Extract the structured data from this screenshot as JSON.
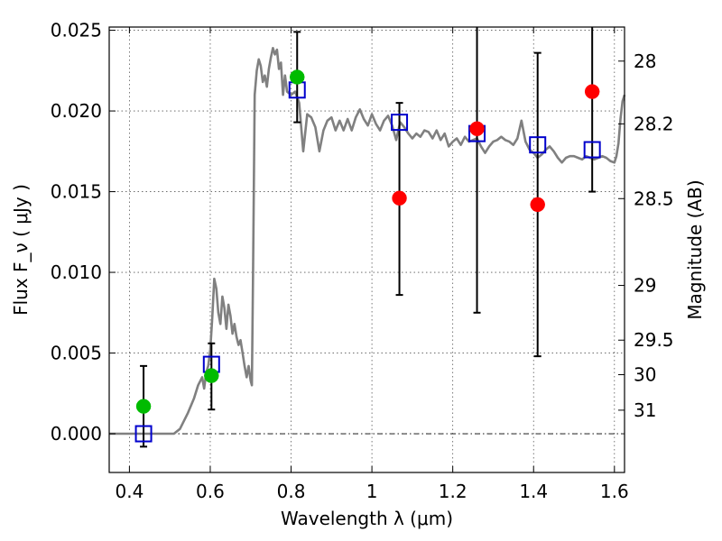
{
  "chart_data": {
    "type": "scatter",
    "xlabel": "Wavelength  λ (μm)",
    "ylabel": "Flux  F_ν  ( μJy )",
    "ylabel_right": "Magnitude (AB)",
    "xlim": [
      0.35,
      1.625
    ],
    "ylim": [
      -0.0024,
      0.0252
    ],
    "xticks": [
      {
        "value": 0.4,
        "label": "0.4"
      },
      {
        "value": 0.6,
        "label": "0.6"
      },
      {
        "value": 0.8,
        "label": "0.8"
      },
      {
        "value": 1.0,
        "label": "1"
      },
      {
        "value": 1.2,
        "label": "1.2"
      },
      {
        "value": 1.4,
        "label": "1.4"
      },
      {
        "value": 1.6,
        "label": "1.6"
      }
    ],
    "yticks": [
      {
        "value": 0.0,
        "label": "0.000"
      },
      {
        "value": 0.005,
        "label": "0.005"
      },
      {
        "value": 0.01,
        "label": "0.010"
      },
      {
        "value": 0.015,
        "label": "0.015"
      },
      {
        "value": 0.02,
        "label": "0.020"
      },
      {
        "value": 0.025,
        "label": "0.025"
      }
    ],
    "right_ticks": [
      {
        "label": "28",
        "flux": 0.02309
      },
      {
        "label": "28.2",
        "flux": 0.0192
      },
      {
        "label": "28.5",
        "flux": 0.01457
      },
      {
        "label": "29",
        "flux": 0.00919
      },
      {
        "label": "29.5",
        "flux": 0.0058
      },
      {
        "label": "30",
        "flux": 0.00366
      },
      {
        "label": "31",
        "flux": 0.00146
      }
    ],
    "grid": true,
    "legend": "none",
    "series": [
      {
        "kind": "line",
        "color": "#808080",
        "x": [
          0.35,
          0.51,
          0.525,
          0.545,
          0.56,
          0.57,
          0.58,
          0.585,
          0.59,
          0.595,
          0.6,
          0.605,
          0.61,
          0.615,
          0.62,
          0.625,
          0.63,
          0.635,
          0.64,
          0.645,
          0.65,
          0.655,
          0.66,
          0.665,
          0.67,
          0.675,
          0.68,
          0.685,
          0.69,
          0.695,
          0.7,
          0.703,
          0.706,
          0.71,
          0.715,
          0.72,
          0.725,
          0.73,
          0.735,
          0.74,
          0.745,
          0.75,
          0.755,
          0.76,
          0.765,
          0.77,
          0.775,
          0.78,
          0.785,
          0.79,
          0.8,
          0.81,
          0.82,
          0.83,
          0.84,
          0.85,
          0.86,
          0.87,
          0.88,
          0.89,
          0.9,
          0.91,
          0.92,
          0.93,
          0.94,
          0.95,
          0.96,
          0.97,
          0.98,
          0.99,
          1.0,
          1.01,
          1.02,
          1.03,
          1.04,
          1.05,
          1.06,
          1.07,
          1.08,
          1.09,
          1.1,
          1.11,
          1.12,
          1.13,
          1.14,
          1.15,
          1.16,
          1.17,
          1.18,
          1.19,
          1.2,
          1.21,
          1.22,
          1.23,
          1.24,
          1.25,
          1.26,
          1.27,
          1.28,
          1.29,
          1.3,
          1.31,
          1.32,
          1.33,
          1.34,
          1.35,
          1.36,
          1.37,
          1.38,
          1.39,
          1.4,
          1.41,
          1.42,
          1.43,
          1.44,
          1.45,
          1.46,
          1.47,
          1.48,
          1.49,
          1.5,
          1.51,
          1.52,
          1.53,
          1.54,
          1.55,
          1.56,
          1.57,
          1.58,
          1.59,
          1.6,
          1.605,
          1.61,
          1.615,
          1.62,
          1.625
        ],
        "y": [
          0.0,
          0.0,
          0.0003,
          0.0013,
          0.0022,
          0.003,
          0.0035,
          0.0028,
          0.0038,
          0.0042,
          0.0052,
          0.0072,
          0.0096,
          0.009,
          0.0075,
          0.0068,
          0.0085,
          0.0078,
          0.0065,
          0.008,
          0.0073,
          0.0062,
          0.0068,
          0.006,
          0.0055,
          0.0058,
          0.005,
          0.0042,
          0.0035,
          0.0042,
          0.0033,
          0.003,
          0.01,
          0.021,
          0.0225,
          0.0232,
          0.0228,
          0.0218,
          0.0222,
          0.0215,
          0.0226,
          0.0233,
          0.0239,
          0.0235,
          0.0238,
          0.0226,
          0.023,
          0.021,
          0.0222,
          0.0212,
          0.021,
          0.0212,
          0.0205,
          0.0175,
          0.0198,
          0.0196,
          0.019,
          0.0175,
          0.0188,
          0.0194,
          0.0196,
          0.0188,
          0.0194,
          0.0188,
          0.0195,
          0.0188,
          0.0196,
          0.0201,
          0.0195,
          0.0191,
          0.0198,
          0.0192,
          0.0188,
          0.0194,
          0.0197,
          0.0191,
          0.0182,
          0.0193,
          0.019,
          0.0186,
          0.0183,
          0.0186,
          0.0184,
          0.0188,
          0.0187,
          0.0183,
          0.0188,
          0.0182,
          0.0186,
          0.0178,
          0.0181,
          0.0183,
          0.0179,
          0.0184,
          0.0181,
          0.0182,
          0.0183,
          0.0178,
          0.0174,
          0.0178,
          0.0181,
          0.0182,
          0.0184,
          0.0182,
          0.0181,
          0.0179,
          0.0183,
          0.0194,
          0.0181,
          0.0176,
          0.0174,
          0.0171,
          0.0173,
          0.0176,
          0.0178,
          0.0175,
          0.0171,
          0.0168,
          0.0171,
          0.0172,
          0.0172,
          0.0171,
          0.017,
          0.0172,
          0.0171,
          0.017,
          0.0171,
          0.0172,
          0.0171,
          0.0169,
          0.0168,
          0.0172,
          0.018,
          0.0195,
          0.0206,
          0.021
        ]
      },
      {
        "kind": "errorbar",
        "color": "#000000",
        "x": [
          0.435,
          0.603,
          0.815,
          1.068,
          1.26,
          1.41,
          1.545
        ],
        "low": [
          -0.0008,
          0.0015,
          0.0193,
          0.0086,
          0.0075,
          0.0048,
          0.015
        ],
        "high": [
          0.0042,
          0.0056,
          0.0249,
          0.0205,
          0.0255,
          0.0236,
          0.0255
        ]
      },
      {
        "kind": "square",
        "color": "#0000cc",
        "x": [
          0.435,
          0.603,
          0.815,
          1.068,
          1.26,
          1.41,
          1.545
        ],
        "y": [
          0.0,
          0.0043,
          0.0213,
          0.0193,
          0.0186,
          0.0179,
          0.0176
        ]
      },
      {
        "kind": "circle",
        "color": "#00bb00",
        "x": [
          0.435,
          0.603,
          0.815
        ],
        "y": [
          0.0017,
          0.0036,
          0.0221
        ]
      },
      {
        "kind": "circle",
        "color": "#ff0000",
        "x": [
          1.068,
          1.26,
          1.41,
          1.545
        ],
        "y": [
          0.0146,
          0.0189,
          0.0142,
          0.0212
        ]
      }
    ]
  }
}
